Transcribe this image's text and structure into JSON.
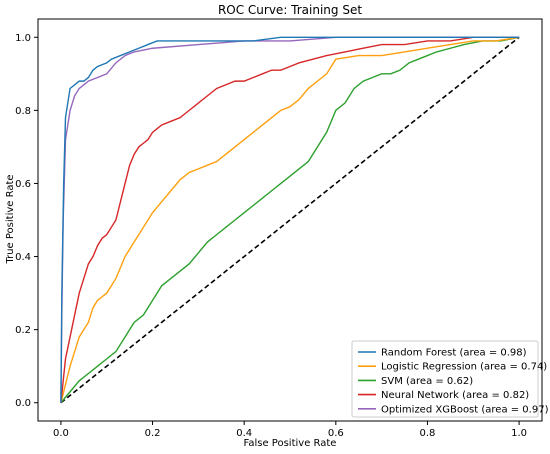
{
  "chart_data": {
    "type": "line",
    "title": "ROC Curve: Training Set",
    "xlabel": "False Positive Rate",
    "ylabel": "True Positive Rate",
    "xlim": [
      -0.05,
      1.05
    ],
    "ylim": [
      -0.05,
      1.05
    ],
    "xticks": [
      "0.0",
      "0.2",
      "0.4",
      "0.6",
      "0.8",
      "1.0"
    ],
    "yticks": [
      "0.0",
      "0.2",
      "0.4",
      "0.6",
      "0.8",
      "1.0"
    ],
    "grid": false,
    "legend_position": "lower-right",
    "series": [
      {
        "name": "Random Forest (area = 0.98)",
        "color": "#1f77b4",
        "x": [
          0,
          0.002,
          0.006,
          0.01,
          0.015,
          0.02,
          0.03,
          0.04,
          0.05,
          0.06,
          0.07,
          0.08,
          0.1,
          0.11,
          0.13,
          0.15,
          0.17,
          0.19,
          0.21,
          0.3,
          0.42,
          0.48,
          0.56,
          0.56,
          1.0
        ],
        "y": [
          0,
          0.3,
          0.6,
          0.78,
          0.82,
          0.86,
          0.87,
          0.88,
          0.88,
          0.89,
          0.91,
          0.92,
          0.93,
          0.94,
          0.95,
          0.96,
          0.97,
          0.98,
          0.99,
          0.99,
          0.99,
          1.0,
          1.0,
          1.0,
          1.0
        ]
      },
      {
        "name": "Logistic Regression (area = 0.74)",
        "color": "#ff9f0e",
        "x": [
          0,
          0.01,
          0.02,
          0.03,
          0.04,
          0.05,
          0.06,
          0.07,
          0.08,
          0.09,
          0.1,
          0.12,
          0.14,
          0.16,
          0.18,
          0.2,
          0.22,
          0.24,
          0.26,
          0.28,
          0.3,
          0.32,
          0.34,
          0.36,
          0.38,
          0.4,
          0.42,
          0.44,
          0.46,
          0.48,
          0.5,
          0.52,
          0.54,
          0.56,
          0.58,
          0.6,
          0.65,
          0.7,
          0.75,
          0.8,
          0.85,
          0.9,
          0.95,
          1.0
        ],
        "y": [
          0,
          0.05,
          0.1,
          0.14,
          0.18,
          0.2,
          0.22,
          0.26,
          0.28,
          0.29,
          0.3,
          0.34,
          0.4,
          0.44,
          0.48,
          0.52,
          0.55,
          0.58,
          0.61,
          0.63,
          0.64,
          0.65,
          0.66,
          0.68,
          0.7,
          0.72,
          0.74,
          0.76,
          0.78,
          0.8,
          0.81,
          0.83,
          0.86,
          0.88,
          0.9,
          0.94,
          0.95,
          0.95,
          0.96,
          0.97,
          0.98,
          0.99,
          0.99,
          1.0
        ]
      },
      {
        "name": "SVM (area = 0.62)",
        "color": "#2ca02c",
        "x": [
          0,
          0.02,
          0.04,
          0.06,
          0.08,
          0.1,
          0.12,
          0.14,
          0.16,
          0.18,
          0.2,
          0.22,
          0.24,
          0.26,
          0.28,
          0.3,
          0.32,
          0.34,
          0.36,
          0.38,
          0.4,
          0.42,
          0.44,
          0.46,
          0.48,
          0.5,
          0.52,
          0.54,
          0.56,
          0.58,
          0.6,
          0.62,
          0.64,
          0.66,
          0.68,
          0.7,
          0.72,
          0.74,
          0.76,
          0.78,
          0.8,
          0.82,
          0.85,
          0.88,
          0.92,
          0.96,
          1.0
        ],
        "y": [
          0,
          0.03,
          0.06,
          0.08,
          0.1,
          0.12,
          0.14,
          0.18,
          0.22,
          0.24,
          0.28,
          0.32,
          0.34,
          0.36,
          0.38,
          0.41,
          0.44,
          0.46,
          0.48,
          0.5,
          0.52,
          0.54,
          0.56,
          0.58,
          0.6,
          0.62,
          0.64,
          0.66,
          0.7,
          0.74,
          0.8,
          0.82,
          0.86,
          0.88,
          0.89,
          0.9,
          0.9,
          0.91,
          0.93,
          0.94,
          0.95,
          0.96,
          0.97,
          0.98,
          0.99,
          0.99,
          1.0
        ]
      },
      {
        "name": "Neural Network (area = 0.82)",
        "color": "#d62728",
        "x": [
          0,
          0.01,
          0.02,
          0.03,
          0.04,
          0.05,
          0.06,
          0.07,
          0.08,
          0.09,
          0.1,
          0.11,
          0.12,
          0.13,
          0.14,
          0.15,
          0.16,
          0.17,
          0.18,
          0.19,
          0.2,
          0.22,
          0.24,
          0.26,
          0.28,
          0.3,
          0.32,
          0.34,
          0.36,
          0.38,
          0.4,
          0.42,
          0.44,
          0.46,
          0.48,
          0.5,
          0.52,
          0.55,
          0.58,
          0.62,
          0.66,
          0.7,
          0.75,
          0.8,
          0.85,
          0.9,
          0.95,
          1.0
        ],
        "y": [
          0,
          0.12,
          0.18,
          0.24,
          0.3,
          0.34,
          0.38,
          0.4,
          0.43,
          0.45,
          0.46,
          0.48,
          0.5,
          0.55,
          0.6,
          0.65,
          0.68,
          0.7,
          0.71,
          0.72,
          0.74,
          0.76,
          0.77,
          0.78,
          0.8,
          0.82,
          0.84,
          0.86,
          0.87,
          0.88,
          0.88,
          0.89,
          0.9,
          0.91,
          0.91,
          0.92,
          0.93,
          0.94,
          0.95,
          0.96,
          0.97,
          0.98,
          0.98,
          0.99,
          0.99,
          1.0,
          1.0,
          1.0
        ]
      },
      {
        "name": "Optimized XGBoost (area = 0.97)",
        "color": "#9467bd",
        "x": [
          0,
          0.002,
          0.005,
          0.01,
          0.02,
          0.03,
          0.04,
          0.05,
          0.06,
          0.08,
          0.1,
          0.12,
          0.14,
          0.16,
          0.2,
          0.3,
          0.4,
          0.5,
          0.6,
          0.7,
          0.8,
          0.9,
          1.0
        ],
        "y": [
          0,
          0.25,
          0.5,
          0.72,
          0.8,
          0.84,
          0.86,
          0.87,
          0.88,
          0.89,
          0.9,
          0.93,
          0.95,
          0.96,
          0.97,
          0.98,
          0.99,
          0.99,
          1.0,
          1.0,
          1.0,
          1.0,
          1.0
        ]
      }
    ],
    "reference_line": {
      "x": [
        0,
        1
      ],
      "y": [
        0,
        1
      ],
      "color": "#000000",
      "style": "dashed"
    }
  }
}
